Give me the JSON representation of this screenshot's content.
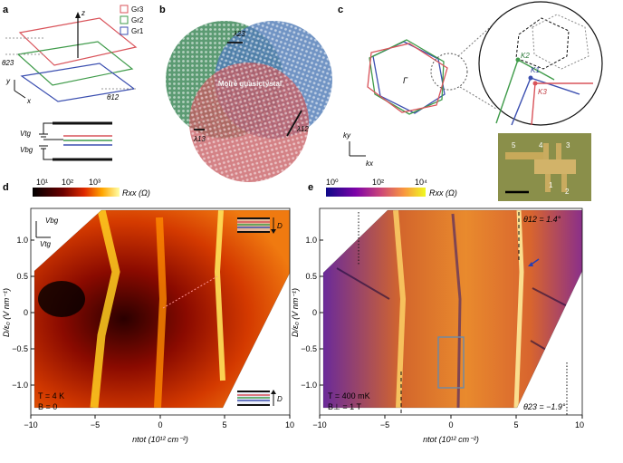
{
  "panels": {
    "a": {
      "letter": "a",
      "z_axis": "z",
      "x_axis": "x",
      "y_axis": "y",
      "legend": [
        {
          "label": "Gr3",
          "color": "#d9535a"
        },
        {
          "label": "Gr2",
          "color": "#3f9b4a"
        },
        {
          "label": "Gr1",
          "color": "#3b4fb0"
        }
      ],
      "theta23": "θ23",
      "theta12": "θ12",
      "v_tg": "Vtg",
      "v_bg": "Vbg"
    },
    "b": {
      "letter": "b",
      "title": "Moiré quasicrystal",
      "lambda_top": "λ23",
      "lambda_left": "λ13",
      "lambda_right": "λ12"
    },
    "c": {
      "letter": "c",
      "gamma": "Γ",
      "k_y": "ky",
      "k_x": "kx",
      "k1": "K1",
      "k2": "K2",
      "k3": "K3",
      "device_labels": [
        "5",
        "4",
        "3",
        "1",
        "2"
      ]
    },
    "d": {
      "letter": "d",
      "colorbar_ticks": [
        "10¹",
        "10²",
        "10³"
      ],
      "colorbar_label": "Rxx (Ω)",
      "v_bg": "Vbg",
      "v_tg": "Vtg",
      "d_arrow": "D",
      "temperature": "T = 4 K",
      "field": "B = 0",
      "ylabel": "D/ε₀ (V nm⁻¹)",
      "xlabel": "ntot (10¹² cm⁻²)",
      "yticks": [
        "1.0",
        "0.5",
        "0",
        "−0.5",
        "−1.0"
      ],
      "xticks": [
        "−10",
        "−5",
        "0",
        "5",
        "10"
      ]
    },
    "e": {
      "letter": "e",
      "colorbar_ticks": [
        "10⁰",
        "10²",
        "10⁴"
      ],
      "colorbar_label": "Rxx (Ω)",
      "theta12": "θ12 = 1.4°",
      "theta23": "θ23 = −1.9°",
      "temperature": "T = 400 mK",
      "field": "B⊥ = 1 T",
      "ylabel": "D/ε₀ (V nm⁻¹)",
      "xlabel": "ntot (10¹² cm⁻²)",
      "yticks": [
        "1.0",
        "0.5",
        "0",
        "−0.5",
        "−1.0"
      ],
      "xticks": [
        "−10",
        "−5",
        "0",
        "5",
        "10"
      ]
    }
  }
}
